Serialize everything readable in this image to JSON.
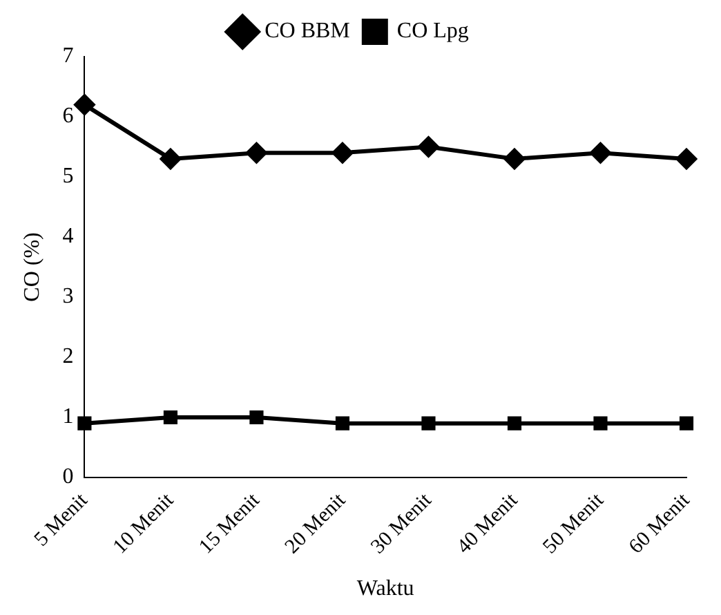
{
  "chart_data": {
    "type": "line",
    "xlabel": "Waktu",
    "ylabel": "CO (%)",
    "categories": [
      "5 Menit",
      "10 Menit",
      "15 Menit",
      "20 Menit",
      "30 Menit",
      "40 Menit",
      "50 Menit",
      "60 Menit"
    ],
    "series": [
      {
        "name": "CO BBM",
        "color": "#000000",
        "marker": "diamond",
        "values": [
          6.2,
          5.3,
          5.4,
          5.4,
          5.5,
          5.3,
          5.4,
          5.3
        ]
      },
      {
        "name": "CO Lpg",
        "color": "#000000",
        "marker": "square",
        "values": [
          0.9,
          1.0,
          1.0,
          0.9,
          0.9,
          0.9,
          0.9,
          0.9
        ]
      }
    ],
    "ylim": [
      0,
      7
    ],
    "yticks": [
      0,
      1,
      2,
      3,
      4,
      5,
      6,
      7
    ],
    "grid": false,
    "legend": "top"
  }
}
